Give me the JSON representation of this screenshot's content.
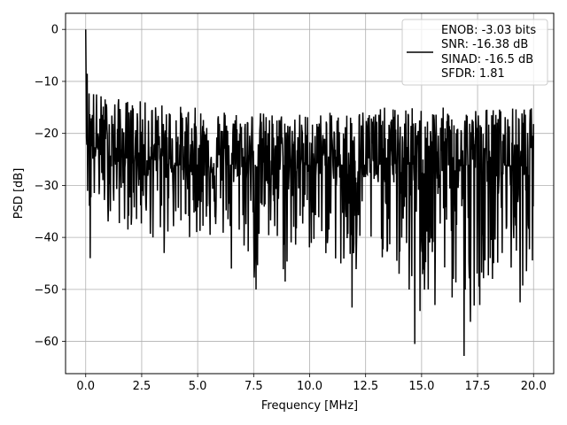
{
  "chart_data": {
    "type": "line",
    "xlabel": "Frequency [MHz]",
    "ylabel": "PSD [dB]",
    "xlim": [
      -0.9,
      20.9
    ],
    "ylim": [
      -66.2,
      3.1
    ],
    "xticks": [
      0.0,
      2.5,
      5.0,
      7.5,
      10.0,
      12.5,
      15.0,
      17.5,
      20.0
    ],
    "xtick_labels": [
      "0.0",
      "2.5",
      "5.0",
      "7.5",
      "10.0",
      "12.5",
      "15.0",
      "17.5",
      "20.0"
    ],
    "yticks": [
      0,
      -10,
      -20,
      -30,
      -40,
      -50,
      -60
    ],
    "ytick_labels": [
      "0",
      "−10",
      "−20",
      "−30",
      "−40",
      "−50",
      "−60"
    ],
    "grid": true,
    "legend_position": "upper-right",
    "legend": [
      "ENOB: -3.03 bits",
      "SNR: -16.38 dB",
      "SINAD: -16.5 dB",
      "SFDR: 1.81"
    ],
    "series": [
      {
        "color": "#000000",
        "x_start": 0,
        "x_end": 20,
        "num_points": 1200,
        "x": [
          0.0,
          0.02,
          0.05,
          0.08,
          0.12,
          0.2,
          0.5,
          1.0,
          2.0,
          3.0,
          4.0,
          5.0,
          6.0,
          7.0,
          7.5,
          8.0,
          8.8,
          10.0,
          11.0,
          11.9,
          12.5,
          13.5,
          14.0,
          14.8,
          15.3,
          16.0,
          16.9,
          17.5,
          18.0,
          19.0,
          19.5,
          20.0
        ],
        "upper": [
          0.0,
          -3.0,
          -6.0,
          -8.0,
          -9.5,
          -10.0,
          -12.0,
          -13.0,
          -13.5,
          -14.0,
          -14.5,
          -15.0,
          -15.0,
          -15.5,
          -15.5,
          -16.0,
          -16.0,
          -16.0,
          -16.0,
          -15.5,
          -15.0,
          -15.0,
          -15.0,
          -15.0,
          -15.0,
          -15.0,
          -15.0,
          -15.0,
          -15.0,
          -15.0,
          -15.0,
          -15.0
        ],
        "lower": [
          -2.5,
          -15.0,
          -28.0,
          -36.0,
          -44.0,
          -36.0,
          -35.0,
          -37.0,
          -39.0,
          -40.0,
          -40.0,
          -40.0,
          -41.0,
          -42.0,
          -50.0,
          -45.0,
          -48.0,
          -43.0,
          -44.0,
          -53.5,
          -45.0,
          -44.0,
          -45.0,
          -60.5,
          -50.0,
          -48.0,
          -62.8,
          -50.0,
          -48.0,
          -48.0,
          -50.0,
          -44.0
        ],
        "median": [
          0.0,
          -10.0,
          -18.0,
          -20.0,
          -22.0,
          -22.0,
          -23.0,
          -24.0,
          -25.0,
          -25.0,
          -26.0,
          -26.0,
          -26.0,
          -26.0,
          -26.0,
          -26.0,
          -26.0,
          -26.0,
          -26.0,
          -26.0,
          -26.0,
          -26.0,
          -26.0,
          -26.0,
          -26.0,
          -26.0,
          -26.0,
          -26.0,
          -26.0,
          -26.0,
          -26.0,
          -26.0
        ],
        "notable_dips": [
          {
            "x": 0.2,
            "y": -44.0
          },
          {
            "x": 3.0,
            "y": -40.0
          },
          {
            "x": 3.5,
            "y": -43.0
          },
          {
            "x": 6.5,
            "y": -46.0
          },
          {
            "x": 7.6,
            "y": -50.0
          },
          {
            "x": 8.9,
            "y": -48.5
          },
          {
            "x": 11.4,
            "y": -45.0
          },
          {
            "x": 11.9,
            "y": -53.5
          },
          {
            "x": 13.9,
            "y": -44.5
          },
          {
            "x": 14.0,
            "y": -47.0
          },
          {
            "x": 14.7,
            "y": -60.5
          },
          {
            "x": 15.3,
            "y": -50.0
          },
          {
            "x": 15.6,
            "y": -53.0
          },
          {
            "x": 16.4,
            "y": -47.0
          },
          {
            "x": 16.9,
            "y": -62.8
          },
          {
            "x": 17.6,
            "y": -53.0
          },
          {
            "x": 18.6,
            "y": -43.0
          },
          {
            "x": 19.4,
            "y": -52.5
          }
        ]
      }
    ]
  }
}
